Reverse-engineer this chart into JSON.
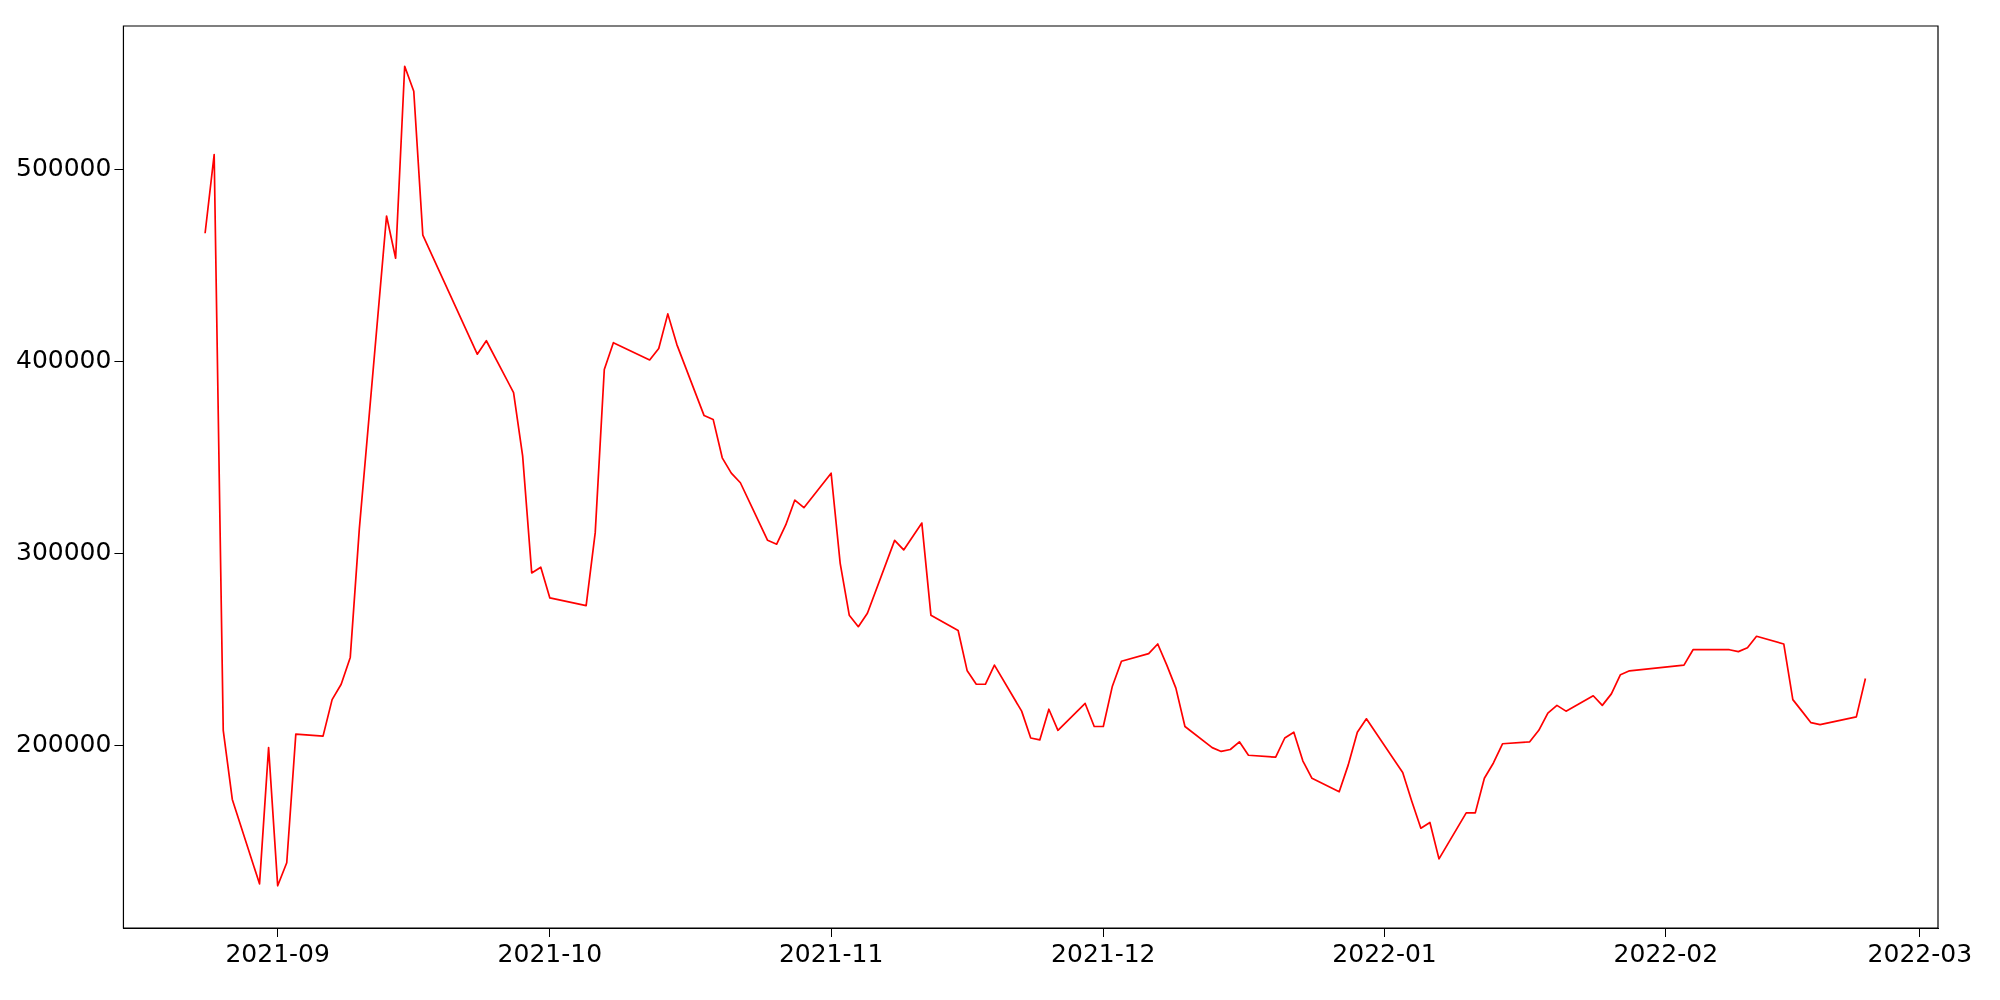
{
  "chart_data": {
    "type": "line",
    "x": [
      "2021-08-24",
      "2021-08-25",
      "2021-08-26",
      "2021-08-27",
      "2021-08-30",
      "2021-08-31",
      "2021-09-01",
      "2021-09-02",
      "2021-09-03",
      "2021-09-06",
      "2021-09-07",
      "2021-09-08",
      "2021-09-09",
      "2021-09-10",
      "2021-09-13",
      "2021-09-14",
      "2021-09-15",
      "2021-09-16",
      "2021-09-17",
      "2021-09-23",
      "2021-09-24",
      "2021-09-27",
      "2021-09-28",
      "2021-09-29",
      "2021-09-30",
      "2021-10-01",
      "2021-10-05",
      "2021-10-06",
      "2021-10-07",
      "2021-10-08",
      "2021-10-12",
      "2021-10-13",
      "2021-10-14",
      "2021-10-15",
      "2021-10-18",
      "2021-10-19",
      "2021-10-20",
      "2021-10-21",
      "2021-10-22",
      "2021-10-25",
      "2021-10-26",
      "2021-10-27",
      "2021-10-28",
      "2021-10-29",
      "2021-11-01",
      "2021-11-02",
      "2021-11-03",
      "2021-11-04",
      "2021-11-05",
      "2021-11-08",
      "2021-11-09",
      "2021-11-11",
      "2021-11-12",
      "2021-11-15",
      "2021-11-16",
      "2021-11-17",
      "2021-11-18",
      "2021-11-19",
      "2021-11-22",
      "2021-11-23",
      "2021-11-24",
      "2021-11-25",
      "2021-11-26",
      "2021-11-29",
      "2021-11-30",
      "2021-12-01",
      "2021-12-02",
      "2021-12-03",
      "2021-12-06",
      "2021-12-07",
      "2021-12-08",
      "2021-12-09",
      "2021-12-10",
      "2021-12-13",
      "2021-12-14",
      "2021-12-15",
      "2021-12-16",
      "2021-12-17",
      "2021-12-20",
      "2021-12-21",
      "2021-12-22",
      "2021-12-23",
      "2021-12-24",
      "2021-12-27",
      "2021-12-28",
      "2021-12-29",
      "2021-12-30",
      "2022-01-03",
      "2022-01-04",
      "2022-01-05",
      "2022-01-06",
      "2022-01-07",
      "2022-01-10",
      "2022-01-11",
      "2022-01-12",
      "2022-01-13",
      "2022-01-14",
      "2022-01-17",
      "2022-01-18",
      "2022-01-19",
      "2022-01-20",
      "2022-01-21",
      "2022-01-24",
      "2022-01-25",
      "2022-01-26",
      "2022-01-27",
      "2022-01-28",
      "2022-02-03",
      "2022-02-04",
      "2022-02-08",
      "2022-02-09",
      "2022-02-10",
      "2022-02-11",
      "2022-02-14",
      "2022-02-15",
      "2022-02-16",
      "2022-02-17",
      "2022-02-18",
      "2022-02-22",
      "2022-02-23"
    ],
    "series": [
      {
        "color": "#ff0000",
        "values": [
          467000,
          508000,
          208000,
          172000,
          128000,
          199000,
          127000,
          139000,
          206000,
          205000,
          224000,
          232000,
          246000,
          313000,
          476000,
          454000,
          554000,
          541000,
          466000,
          404000,
          411000,
          384000,
          351000,
          290000,
          293000,
          277000,
          273000,
          311000,
          396000,
          410000,
          401000,
          407000,
          425000,
          409000,
          372000,
          370000,
          350000,
          342000,
          337000,
          307000,
          305000,
          315000,
          328000,
          324000,
          342000,
          295000,
          268000,
          262000,
          269000,
          307000,
          302000,
          316000,
          268000,
          260000,
          239000,
          232000,
          232000,
          242000,
          218000,
          204000,
          203000,
          219000,
          208000,
          222000,
          210000,
          210000,
          231000,
          244000,
          248000,
          253000,
          242000,
          230000,
          210000,
          199000,
          197000,
          198000,
          202000,
          195000,
          194000,
          204000,
          207000,
          192000,
          183000,
          176000,
          190000,
          207000,
          214000,
          186000,
          171000,
          157000,
          160000,
          141000,
          165000,
          165000,
          183000,
          191000,
          201000,
          202000,
          208000,
          217000,
          221000,
          218000,
          226000,
          221000,
          227000,
          237000,
          239000,
          242000,
          250000,
          250000,
          249000,
          251000,
          257000,
          253000,
          224000,
          218000,
          212000,
          211000,
          215000,
          235000
        ]
      }
    ],
    "xlim": [
      "2021-08-15",
      "2022-03-03"
    ],
    "xticks": [
      "2021-09",
      "2021-10",
      "2021-11",
      "2021-12",
      "2022-01",
      "2022-02",
      "2022-03"
    ],
    "ylim": [
      105000,
      575000
    ],
    "yticks": [
      200000,
      300000,
      400000,
      500000
    ],
    "grid": false,
    "legend": false,
    "marker": "none",
    "line_style": "solid"
  }
}
